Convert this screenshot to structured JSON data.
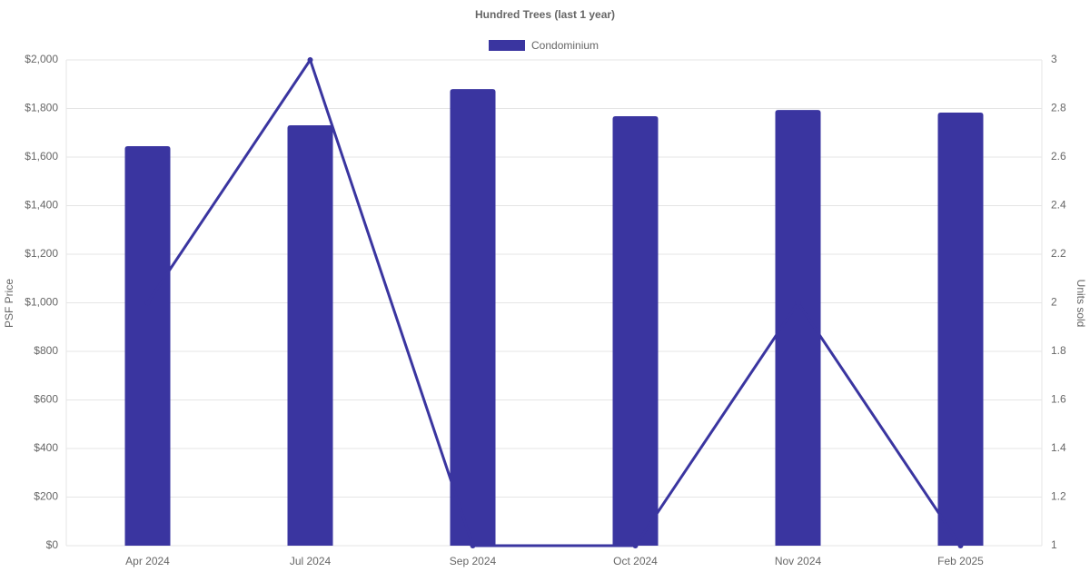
{
  "chart_data": {
    "type": "bar-line",
    "title": "Hundred Trees (last 1 year)",
    "y_label": "PSF Price",
    "y2_label": "Units sold",
    "categories": [
      "Apr 2024",
      "Jul 2024",
      "Sep 2024",
      "Oct 2024",
      "Nov 2024",
      "Feb 2025"
    ],
    "series": [
      {
        "name": "Condominium",
        "type": "bar",
        "color": "#3a35a0",
        "values": [
          1645,
          1731,
          1880,
          1768,
          1794,
          1783
        ]
      },
      {
        "type": "line",
        "axis": "y2",
        "color": "#3a35a0",
        "values": [
          2,
          3,
          1,
          1,
          2,
          1
        ]
      }
    ],
    "ylim": [
      0,
      2000
    ],
    "yticks": [
      {
        "value": 0,
        "label": "$0"
      },
      {
        "value": 200,
        "label": "$200"
      },
      {
        "value": 400,
        "label": "$400"
      },
      {
        "value": 600,
        "label": "$600"
      },
      {
        "value": 800,
        "label": "$800"
      },
      {
        "value": 1000,
        "label": "$1,000"
      },
      {
        "value": 1200,
        "label": "$1,200"
      },
      {
        "value": 1400,
        "label": "$1,400"
      },
      {
        "value": 1600,
        "label": "$1,600"
      },
      {
        "value": 1800,
        "label": "$1,800"
      },
      {
        "value": 2000,
        "label": "$2,000"
      }
    ],
    "y2lim": [
      1,
      3
    ],
    "y2ticks": [
      1,
      1.2,
      1.4,
      1.6,
      1.8,
      2,
      2.2,
      2.4,
      2.6,
      2.8,
      3
    ],
    "grid": true,
    "legend": "top"
  }
}
